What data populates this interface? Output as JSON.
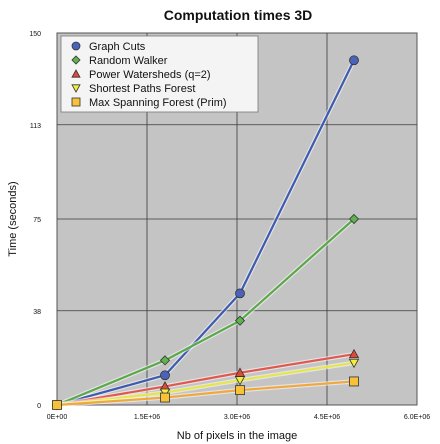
{
  "chart_data": {
    "type": "line",
    "title": "Computation times 3D",
    "xlabel": "Nb of pixels in the image",
    "ylabel": "Time (seconds)",
    "xlim": [
      0,
      6000000
    ],
    "ylim": [
      0,
      150
    ],
    "xticks": [
      0,
      1500000,
      3000000,
      4500000,
      6000000
    ],
    "xtick_labels": [
      "0E+00",
      "1.5E+06",
      "3.0E+06",
      "4.5E+06",
      "6.0E+06"
    ],
    "yticks": [
      0,
      38,
      75,
      113,
      150
    ],
    "ytick_labels": [
      "0",
      "38",
      "75",
      "113",
      "150"
    ],
    "grid": true,
    "background": "#c4c4c4",
    "legend_position": "top-left",
    "x": [
      0,
      1800000,
      3050000,
      4950000
    ],
    "series": [
      {
        "name": "Graph Cuts",
        "values": [
          0,
          12,
          45,
          139
        ],
        "color": "#3e5bb0",
        "marker": "circle",
        "marker_color": "#4a63b8"
      },
      {
        "name": "Random Walker",
        "values": [
          0,
          18,
          34,
          75
        ],
        "color": "#5aa84a",
        "marker": "diamond",
        "marker_color": "#5fb24e"
      },
      {
        "name": "Power Watersheds (q=2)",
        "values": [
          0,
          7.5,
          13,
          20.5
        ],
        "color": "#e0584f",
        "marker": "triangle-up",
        "marker_color": "#e04a3c"
      },
      {
        "name": "Shortest Paths Forest",
        "values": [
          0,
          5,
          10,
          17
        ],
        "color": "#e6e64a",
        "marker": "triangle-down",
        "marker_color": "#f2ee3a"
      },
      {
        "name": "Max Spanning Forest (Prim)",
        "values": [
          0,
          3,
          6,
          9.5
        ],
        "color": "#f0a83c",
        "marker": "square",
        "marker_color": "#f7c23a"
      }
    ]
  }
}
